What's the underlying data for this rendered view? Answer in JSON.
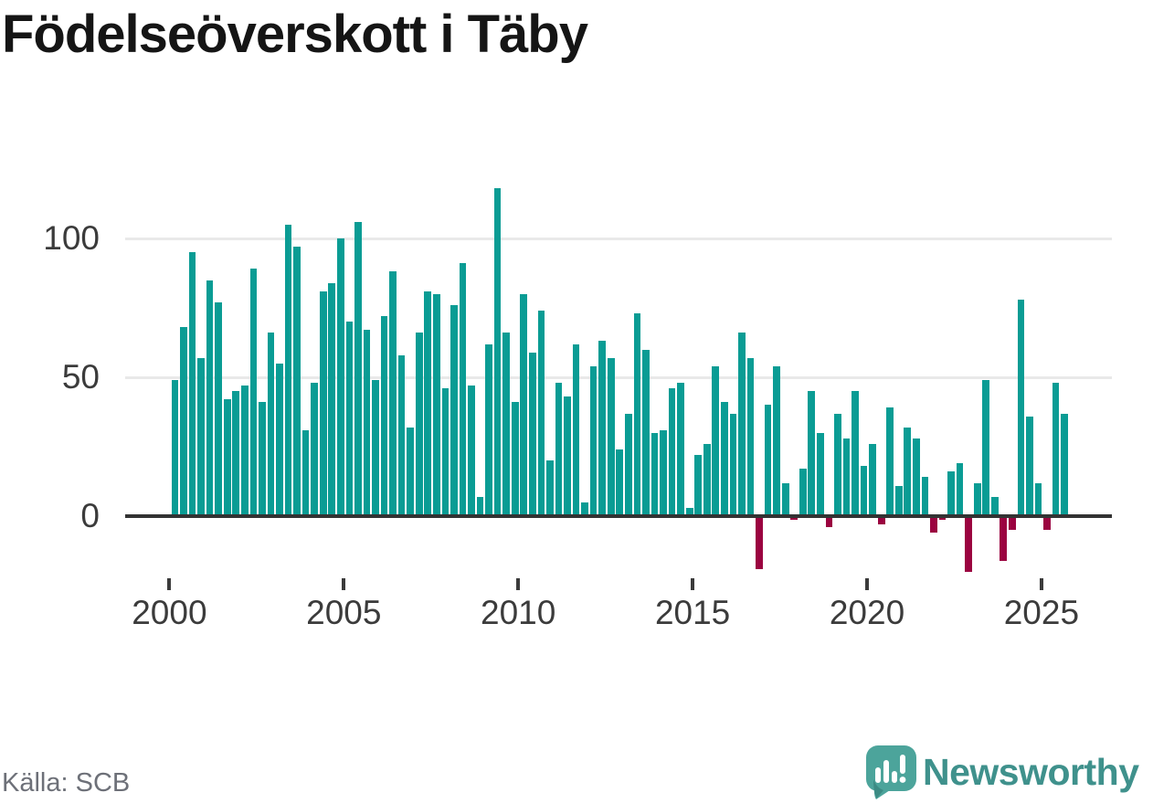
{
  "title": "Födelseöverskott i Täby",
  "source_label": "Källa: SCB",
  "brand": {
    "name": "Newsworthy",
    "logo_icon": "speech-bubble-bar-chart-exclamation"
  },
  "colors": {
    "positive_bar": "#0a9c94",
    "negative_bar": "#9b0340",
    "axis_line": "#333333",
    "gridline": "#e9e9e9",
    "tick_label": "#3b3b3b",
    "title_text": "#151515",
    "source_text": "#6d7078",
    "brand_text": "#3f918c",
    "brand_bubble": "#4ca49b",
    "brand_bubble_shade": "#3c8b84"
  },
  "y_axis": {
    "ticks": [
      0,
      50,
      100
    ]
  },
  "x_axis": {
    "ticks": [
      "2000",
      "2005",
      "2010",
      "2015",
      "2020",
      "2025"
    ]
  },
  "chart_data": {
    "type": "bar",
    "title": "Födelseöverskott i Täby",
    "xlabel": "",
    "ylabel": "",
    "frequency": "quarterly",
    "start": "2000-Q1",
    "end": "2025-Q3",
    "ylim": [
      -25,
      125
    ],
    "grid": "horizontal-at-50-and-100",
    "legend": "none",
    "values": [
      49,
      68,
      95,
      57,
      85,
      77,
      42,
      45,
      47,
      89,
      41,
      66,
      55,
      105,
      97,
      31,
      48,
      81,
      84,
      100,
      70,
      106,
      67,
      49,
      72,
      88,
      58,
      32,
      66,
      81,
      80,
      46,
      76,
      91,
      47,
      7,
      62,
      118,
      66,
      41,
      80,
      59,
      74,
      20,
      48,
      43,
      62,
      5,
      54,
      63,
      57,
      24,
      37,
      73,
      60,
      30,
      31,
      46,
      48,
      3,
      22,
      26,
      54,
      41,
      37,
      66,
      57,
      -19,
      40,
      54,
      12,
      -1,
      17,
      45,
      30,
      -4,
      37,
      28,
      45,
      18,
      26,
      -3,
      39,
      11,
      32,
      28,
      14,
      -6,
      -1,
      16,
      19,
      -20,
      12,
      49,
      7,
      -16,
      -5,
      78,
      36,
      12,
      -5,
      48,
      37
    ]
  }
}
